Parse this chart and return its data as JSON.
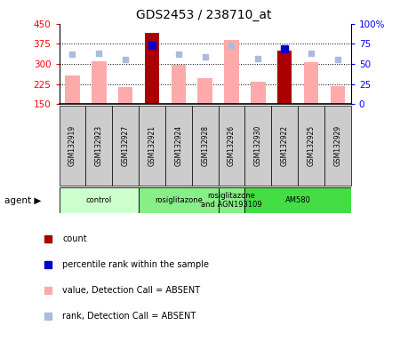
{
  "title": "GDS2453 / 238710_at",
  "samples": [
    "GSM132919",
    "GSM132923",
    "GSM132927",
    "GSM132921",
    "GSM132924",
    "GSM132928",
    "GSM132926",
    "GSM132930",
    "GSM132922",
    "GSM132925",
    "GSM132929"
  ],
  "bar_values": [
    258,
    310,
    215,
    415,
    298,
    247,
    390,
    232,
    350,
    308,
    218
  ],
  "bar_colors": [
    "#ffaaaa",
    "#ffaaaa",
    "#ffaaaa",
    "#aa0000",
    "#ffaaaa",
    "#ffaaaa",
    "#ffaaaa",
    "#ffaaaa",
    "#aa0000",
    "#ffaaaa",
    "#ffaaaa"
  ],
  "rank_dots": [
    335,
    340,
    315,
    370,
    335,
    325,
    370,
    320,
    358,
    340,
    315
  ],
  "rank_dot_colors": [
    "#aabbdd",
    "#aabbdd",
    "#aabbdd",
    "#0000cc",
    "#aabbdd",
    "#aabbdd",
    "#aabbdd",
    "#aabbdd",
    "#0000cc",
    "#aabbdd",
    "#aabbdd"
  ],
  "ylim_left": [
    150,
    450
  ],
  "ylim_right": [
    0,
    100
  ],
  "yticks_left": [
    150,
    225,
    300,
    375,
    450
  ],
  "yticks_right": [
    0,
    25,
    50,
    75,
    100
  ],
  "ytick_labels_left": [
    "150",
    "225",
    "300",
    "375",
    "450"
  ],
  "ytick_labels_right": [
    "0",
    "25",
    "50",
    "75",
    "100%"
  ],
  "hlines": [
    225,
    300,
    375
  ],
  "agent_groups": [
    {
      "label": "control",
      "start": 0,
      "end": 3,
      "color": "#ccffcc"
    },
    {
      "label": "rosiglitazone",
      "start": 3,
      "end": 6,
      "color": "#88ee88"
    },
    {
      "label": "rosiglitazone\nand AGN193109",
      "start": 6,
      "end": 7,
      "color": "#88ee88"
    },
    {
      "label": "AM580",
      "start": 7,
      "end": 11,
      "color": "#44dd44"
    }
  ],
  "legend_colors": [
    "#aa0000",
    "#0000cc",
    "#ffaaaa",
    "#aabbdd"
  ],
  "legend_labels": [
    "count",
    "percentile rank within the sample",
    "value, Detection Call = ABSENT",
    "rank, Detection Call = ABSENT"
  ],
  "background_color": "#ffffff",
  "plot_bg_color": "#ffffff",
  "tick_box_color": "#cccccc"
}
